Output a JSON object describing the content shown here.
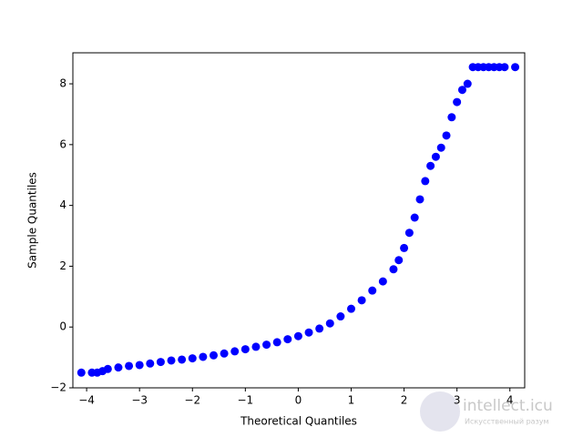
{
  "chart_data": {
    "type": "scatter",
    "x_label": "Theoretical Quantiles",
    "y_label": "Sample Quantiles",
    "color": "#0000ff",
    "x": [
      -4.1,
      -3.9,
      -3.8,
      -3.7,
      -3.6,
      -3.4,
      -3.2,
      -3.0,
      -2.8,
      -2.6,
      -2.4,
      -2.2,
      -2.0,
      -1.8,
      -1.6,
      -1.4,
      -1.2,
      -1.0,
      -0.8,
      -0.6,
      -0.4,
      -0.2,
      0,
      0.2,
      0.4,
      0.6,
      0.8,
      1.0,
      1.2,
      1.4,
      1.6,
      1.8,
      1.9,
      2.0,
      2.1,
      2.2,
      2.3,
      2.4,
      2.5,
      2.6,
      2.7,
      2.8,
      2.9,
      3.0,
      3.1,
      3.2,
      3.3,
      3.4,
      3.5,
      3.6,
      3.7,
      3.8,
      3.9,
      4.1
    ],
    "values": [
      -1.5,
      -1.5,
      -1.5,
      -1.45,
      -1.38,
      -1.33,
      -1.28,
      -1.25,
      -1.2,
      -1.15,
      -1.1,
      -1.07,
      -1.03,
      -0.98,
      -0.93,
      -0.87,
      -0.8,
      -0.73,
      -0.65,
      -0.58,
      -0.5,
      -0.4,
      -0.3,
      -0.18,
      -0.05,
      0.12,
      0.35,
      0.6,
      0.88,
      1.2,
      1.5,
      1.9,
      2.2,
      2.6,
      3.1,
      3.6,
      4.2,
      4.8,
      5.3,
      5.6,
      5.9,
      6.3,
      6.9,
      7.4,
      7.8,
      8.0,
      8.55,
      8.55,
      8.55,
      8.55,
      8.55,
      8.55,
      8.55,
      8.55
    ],
    "xlim": [
      -4.26,
      4.28
    ],
    "ylim": [
      -2,
      9.02
    ],
    "xticks": [
      {
        "value": -4,
        "label": "−4"
      },
      {
        "value": -3,
        "label": "−3"
      },
      {
        "value": -2,
        "label": "−2"
      },
      {
        "value": -1,
        "label": "−1"
      },
      0,
      1,
      2,
      3,
      4
    ],
    "yticks": [
      {
        "value": -2,
        "label": "−2"
      },
      0,
      2,
      4,
      6,
      8
    ]
  },
  "watermark": {
    "title": "intellect.icu",
    "subtitle": "Искусственный разум"
  }
}
